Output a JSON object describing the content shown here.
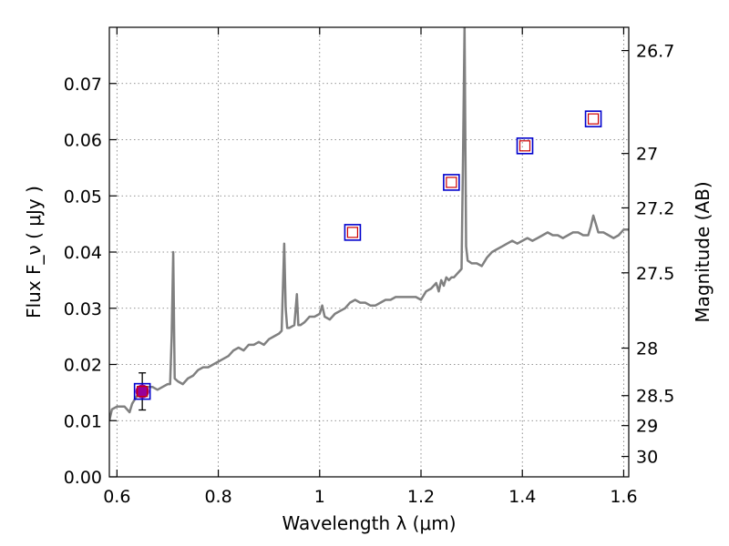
{
  "chart_data": {
    "type": "line",
    "title": "",
    "xlabel": "Wavelength  λ (μm)",
    "ylabel": "Flux  F_ν  ( μJy )",
    "y2label": "Magnitude (AB)",
    "xlim": [
      0.585,
      1.61
    ],
    "ylim": [
      0.0,
      0.08
    ],
    "x_ticks": [
      0.6,
      0.8,
      1.0,
      1.2,
      1.4,
      1.6
    ],
    "x_tick_labels": [
      "0.6",
      "0.8",
      "1",
      "1.2",
      "1.4",
      "1.6"
    ],
    "y_ticks": [
      0.0,
      0.01,
      0.02,
      0.03,
      0.04,
      0.05,
      0.06,
      0.07
    ],
    "y_tick_labels": [
      "0.00",
      "0.01",
      "0.02",
      "0.03",
      "0.04",
      "0.05",
      "0.06",
      "0.07"
    ],
    "y2_ticks": [
      26.7,
      27,
      27.2,
      27.5,
      28,
      28.5,
      29,
      30
    ],
    "y2_tick_labels": [
      "26.7",
      "27",
      "27.2",
      "27.5",
      "28",
      "28.5",
      "29",
      "30"
    ],
    "grid": true,
    "colors": {
      "spectrum": "#808080",
      "observed_fill": "#990099",
      "model_outer": "#0000cc",
      "model_inner": "#cc0000",
      "errorbar": "#000000"
    },
    "series": [
      {
        "kind": "spectrum",
        "x": [
          0.585,
          0.59,
          0.6,
          0.615,
          0.625,
          0.63,
          0.64,
          0.65,
          0.66,
          0.67,
          0.68,
          0.69,
          0.7,
          0.705,
          0.708,
          0.711,
          0.714,
          0.72,
          0.73,
          0.74,
          0.75,
          0.76,
          0.77,
          0.78,
          0.79,
          0.8,
          0.81,
          0.82,
          0.83,
          0.84,
          0.85,
          0.86,
          0.87,
          0.88,
          0.89,
          0.9,
          0.91,
          0.92,
          0.925,
          0.93,
          0.933,
          0.936,
          0.94,
          0.95,
          0.955,
          0.958,
          0.962,
          0.97,
          0.98,
          0.99,
          1.0,
          1.005,
          1.01,
          1.02,
          1.03,
          1.04,
          1.05,
          1.06,
          1.07,
          1.08,
          1.09,
          1.1,
          1.11,
          1.12,
          1.13,
          1.14,
          1.15,
          1.16,
          1.17,
          1.18,
          1.19,
          1.2,
          1.21,
          1.22,
          1.23,
          1.235,
          1.24,
          1.245,
          1.25,
          1.255,
          1.26,
          1.265,
          1.27,
          1.275,
          1.28,
          1.283,
          1.286,
          1.289,
          1.292,
          1.3,
          1.31,
          1.32,
          1.33,
          1.34,
          1.35,
          1.36,
          1.37,
          1.38,
          1.39,
          1.4,
          1.41,
          1.42,
          1.43,
          1.44,
          1.45,
          1.46,
          1.47,
          1.48,
          1.49,
          1.5,
          1.51,
          1.52,
          1.53,
          1.535,
          1.54,
          1.545,
          1.55,
          1.56,
          1.57,
          1.58,
          1.59,
          1.6,
          1.61
        ],
        "y": [
          0.01,
          0.012,
          0.0125,
          0.0125,
          0.0115,
          0.013,
          0.0145,
          0.0155,
          0.016,
          0.016,
          0.0155,
          0.016,
          0.0165,
          0.0165,
          0.025,
          0.04,
          0.0175,
          0.017,
          0.0165,
          0.0175,
          0.018,
          0.019,
          0.0195,
          0.0195,
          0.02,
          0.0205,
          0.021,
          0.0215,
          0.0225,
          0.023,
          0.0225,
          0.0235,
          0.0235,
          0.024,
          0.0235,
          0.0245,
          0.025,
          0.0255,
          0.026,
          0.0415,
          0.03,
          0.0265,
          0.0265,
          0.027,
          0.0325,
          0.027,
          0.027,
          0.0275,
          0.0285,
          0.0285,
          0.029,
          0.0305,
          0.0285,
          0.028,
          0.029,
          0.0295,
          0.03,
          0.031,
          0.0315,
          0.031,
          0.031,
          0.0305,
          0.0305,
          0.031,
          0.0315,
          0.0315,
          0.032,
          0.032,
          0.032,
          0.032,
          0.032,
          0.0315,
          0.033,
          0.0335,
          0.0345,
          0.033,
          0.035,
          0.034,
          0.0355,
          0.035,
          0.0355,
          0.0355,
          0.036,
          0.0365,
          0.037,
          0.058,
          0.08,
          0.041,
          0.0385,
          0.038,
          0.038,
          0.0375,
          0.039,
          0.04,
          0.0405,
          0.041,
          0.0415,
          0.042,
          0.0415,
          0.042,
          0.0425,
          0.042,
          0.0425,
          0.043,
          0.0435,
          0.043,
          0.043,
          0.0425,
          0.043,
          0.0435,
          0.0435,
          0.043,
          0.043,
          0.0445,
          0.0465,
          0.045,
          0.0435,
          0.0435,
          0.043,
          0.0425,
          0.043,
          0.044,
          0.044
        ]
      },
      {
        "kind": "observed",
        "x": [
          0.65
        ],
        "y": [
          0.0152
        ],
        "yerr": [
          0.0033
        ]
      },
      {
        "kind": "model",
        "x": [
          0.65,
          1.065,
          1.26,
          1.405,
          1.54
        ],
        "y": [
          0.0152,
          0.0435,
          0.0524,
          0.0589,
          0.0637
        ]
      }
    ]
  }
}
